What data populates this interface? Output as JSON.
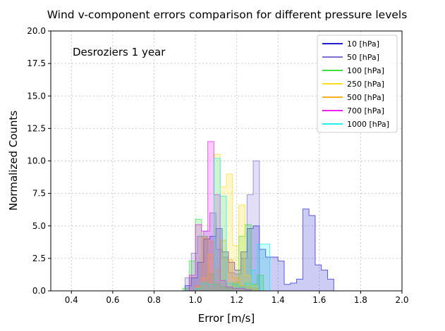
{
  "chart_data": {
    "type": "histogram",
    "title": "Wind v-component errors comparison for different pressure levels",
    "annotation": "Desroziers 1 year",
    "xlabel": "Error [m/s]",
    "ylabel": "Normalized Counts",
    "xlim": [
      0.3,
      2.0
    ],
    "ylim": [
      0,
      20
    ],
    "xticks": [
      0.4,
      0.6,
      0.8,
      1.0,
      1.2,
      1.4,
      1.6,
      1.8,
      2.0
    ],
    "xtick_labels": [
      "0.4",
      "0.6",
      "0.8",
      "1.0",
      "1.2",
      "1.4",
      "1.6",
      "1.8",
      "2.0"
    ],
    "yticks": [
      0,
      2.5,
      5,
      7.5,
      10,
      12.5,
      15,
      17.5,
      20
    ],
    "ytick_labels": [
      "0.0",
      "2.5",
      "5.0",
      "7.5",
      "10.0",
      "12.5",
      "15.0",
      "17.5",
      "20.0"
    ],
    "grid": true,
    "legend_position": "top-right",
    "series": [
      {
        "name": "10 [hPa]",
        "color": "#0000cc",
        "bins": [
          0.95,
          0.98,
          1.01,
          1.04,
          1.07,
          1.1,
          1.13,
          1.16,
          1.19,
          1.22,
          1.25,
          1.28,
          1.31,
          1.34,
          1.37,
          1.4,
          1.43,
          1.46,
          1.49,
          1.52,
          1.55,
          1.58,
          1.61,
          1.64,
          1.67
        ],
        "counts": [
          0.4,
          1.0,
          2.2,
          4.0,
          4.2,
          4.8,
          3.0,
          2.2,
          1.6,
          3.0,
          4.8,
          5.0,
          3.2,
          2.6,
          2.6,
          2.3,
          0.5,
          0.6,
          0.9,
          6.3,
          5.8,
          2.0,
          1.6,
          0.9
        ]
      },
      {
        "name": "50 [hPa]",
        "color": "#6a5acd",
        "bins": [
          0.95,
          0.98,
          1.01,
          1.04,
          1.07,
          1.1,
          1.13,
          1.16,
          1.19,
          1.22,
          1.25,
          1.28,
          1.31
        ],
        "counts": [
          1.0,
          2.9,
          4.2,
          4.6,
          6.0,
          3.2,
          2.6,
          1.4,
          1.3,
          2.5,
          7.4,
          10.0
        ]
      },
      {
        "name": "100 [hPa]",
        "color": "#22dd22",
        "bins": [
          0.94,
          0.97,
          1.0,
          1.03,
          1.06,
          1.09,
          1.12,
          1.15,
          1.18,
          1.21,
          1.24,
          1.27,
          1.3,
          1.33
        ],
        "counts": [
          0.2,
          2.3,
          5.5,
          4.2,
          1.3,
          0.5,
          0.3,
          0.2,
          0.6,
          4.2,
          5.1,
          0.5,
          1.2
        ]
      },
      {
        "name": "250 [hPa]",
        "color": "#ffd700",
        "bins": [
          1.0,
          1.03,
          1.06,
          1.09,
          1.12,
          1.15,
          1.18,
          1.21,
          1.24,
          1.27,
          1.3
        ],
        "counts": [
          0.3,
          1.0,
          2.8,
          10.5,
          8.0,
          9.0,
          3.5,
          6.6,
          1.2,
          0.4
        ]
      },
      {
        "name": "500 [hPa]",
        "color": "#ffa500",
        "bins": [
          1.0,
          1.03,
          1.06,
          1.09,
          1.12,
          1.15,
          1.18,
          1.21,
          1.24,
          1.27,
          1.3
        ],
        "counts": [
          0.4,
          4.1,
          3.8,
          1.6,
          3.9,
          2.4,
          1.0,
          0.4,
          0.3,
          0.2
        ]
      },
      {
        "name": "700 [hPa]",
        "color": "#ee00ee",
        "bins": [
          0.97,
          1.0,
          1.03,
          1.06,
          1.09,
          1.12,
          1.15,
          1.18,
          1.21,
          1.24,
          1.27
        ],
        "counts": [
          1.2,
          5.1,
          4.6,
          11.5,
          7.4,
          0.8,
          0.3,
          0.2,
          0.2,
          0.1
        ]
      },
      {
        "name": "1000 [hPa]",
        "color": "#00eeee",
        "bins": [
          1.0,
          1.03,
          1.06,
          1.09,
          1.12,
          1.15,
          1.18,
          1.21,
          1.24,
          1.27,
          1.3,
          1.33,
          1.36
        ],
        "counts": [
          0.2,
          0.6,
          0.5,
          10.2,
          7.3,
          0.6,
          0.5,
          0.3,
          0.6,
          1.6,
          3.6,
          3.6
        ]
      }
    ]
  }
}
